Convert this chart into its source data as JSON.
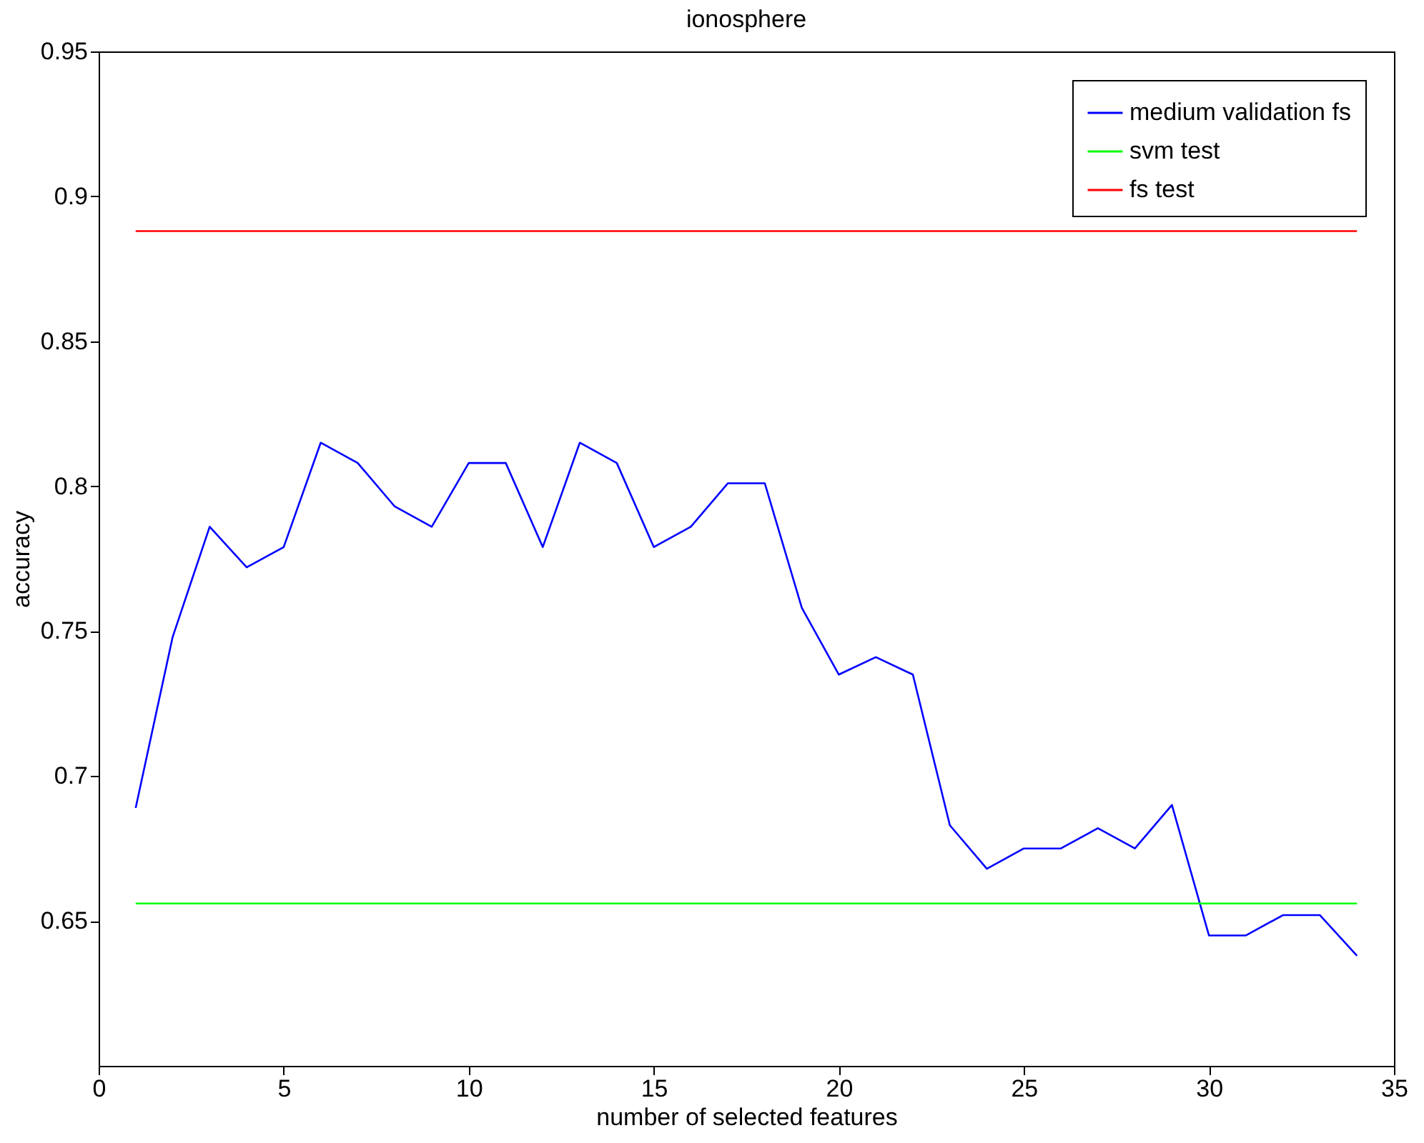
{
  "chart_data": {
    "type": "line",
    "title": "ionosphere",
    "xlabel": "number of selected features",
    "ylabel": "accuracy",
    "xlim": [
      0,
      35
    ],
    "xticks": [
      0,
      5,
      10,
      15,
      20,
      25,
      30,
      35
    ],
    "ylim": [
      0.6,
      0.95
    ],
    "yticks": [
      0.65,
      0.7,
      0.75,
      0.8,
      0.85,
      0.9,
      0.95
    ],
    "grid": false,
    "legend": "top right",
    "marker": "none",
    "line_style": "solid",
    "series": [
      {
        "name": "medium validation fs",
        "color": "#0000ff",
        "x": [
          1,
          2,
          3,
          4,
          5,
          6,
          7,
          8,
          9,
          10,
          11,
          12,
          13,
          14,
          15,
          16,
          17,
          18,
          19,
          20,
          21,
          22,
          23,
          24,
          25,
          26,
          27,
          28,
          29,
          30,
          31,
          32,
          33,
          34
        ],
        "values": [
          0.689,
          0.748,
          0.786,
          0.772,
          0.779,
          0.815,
          0.808,
          0.793,
          0.786,
          0.808,
          0.808,
          0.779,
          0.815,
          0.808,
          0.779,
          0.786,
          0.801,
          0.801,
          0.758,
          0.735,
          0.741,
          0.735,
          0.683,
          0.668,
          0.675,
          0.675,
          0.682,
          0.675,
          0.69,
          0.645,
          0.645,
          0.652,
          0.652,
          0.638
        ]
      },
      {
        "name": "svm test",
        "color": "#00ff00",
        "x": [
          1,
          34
        ],
        "values": [
          0.656,
          0.656
        ]
      },
      {
        "name": "fs test",
        "color": "#ff0000",
        "x": [
          1,
          34
        ],
        "values": [
          0.888,
          0.888
        ]
      }
    ]
  }
}
